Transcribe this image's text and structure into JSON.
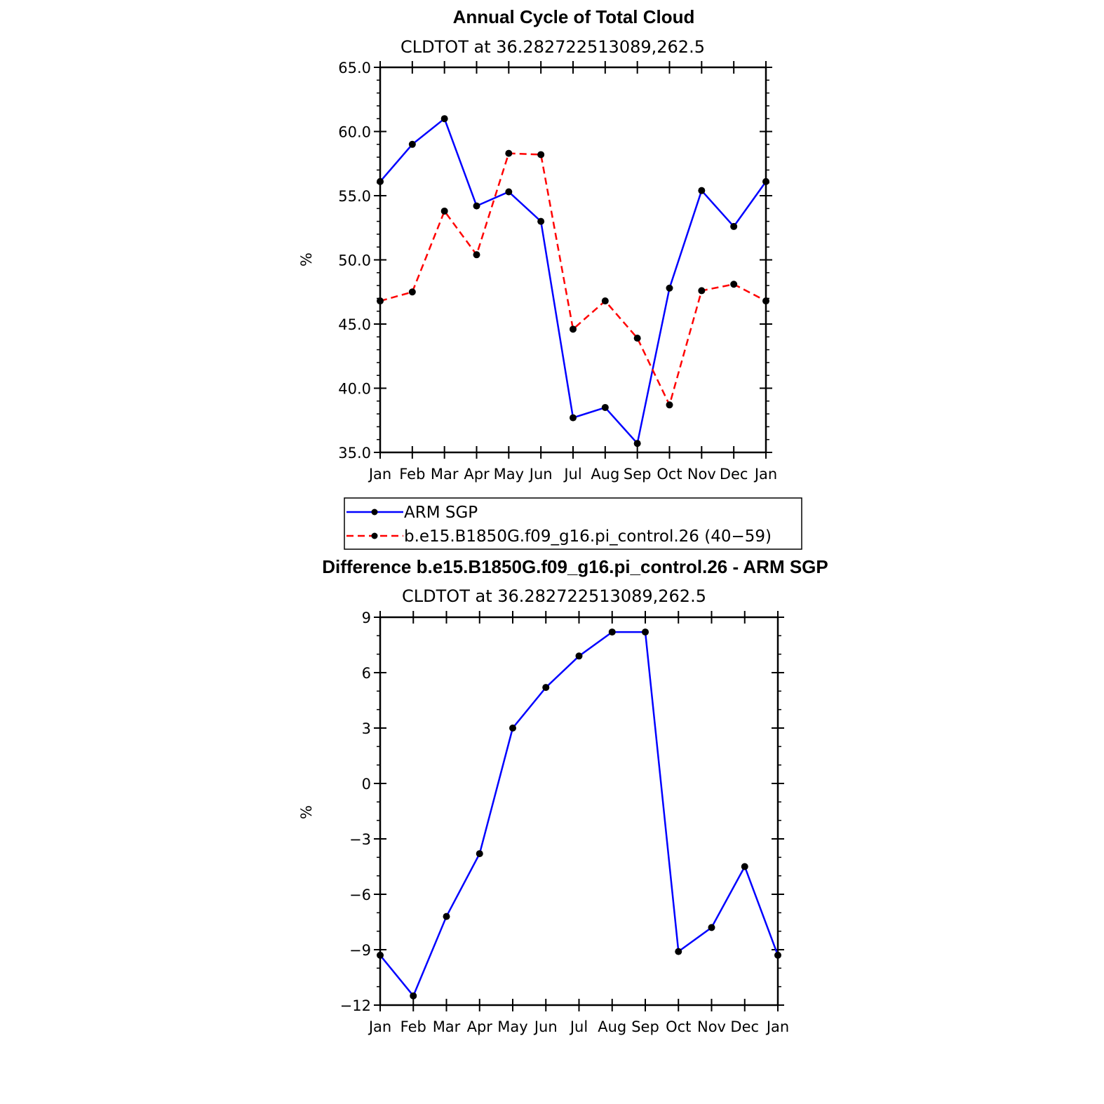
{
  "chart_data": [
    {
      "type": "line",
      "title": "Annual Cycle of Total Cloud",
      "subtitle": "CLDTOT at 36.282722513089,262.5",
      "ylabel": "%",
      "xlabel": "",
      "ylim": [
        35,
        65
      ],
      "yticks": [
        "35.0",
        "40.0",
        "45.0",
        "50.0",
        "55.0",
        "60.0",
        "65.0"
      ],
      "categories": [
        "Jan",
        "Feb",
        "Mar",
        "Apr",
        "May",
        "Jun",
        "Jul",
        "Aug",
        "Sep",
        "Oct",
        "Nov",
        "Dec",
        "Jan"
      ],
      "series": [
        {
          "name": "ARM SGP",
          "color": "#0000ff",
          "dash": "solid",
          "values": [
            56.1,
            59.0,
            61.0,
            54.2,
            55.3,
            53.0,
            37.7,
            38.5,
            35.7,
            47.8,
            55.4,
            52.6,
            56.1
          ]
        },
        {
          "name": "b.e15.B1850G.f09_g16.pi_control.26 (40−59)",
          "color": "#ff0000",
          "dash": "dashed",
          "values": [
            46.8,
            47.5,
            53.8,
            50.4,
            58.3,
            58.2,
            44.6,
            46.8,
            43.9,
            38.7,
            47.6,
            48.1,
            46.8
          ]
        }
      ],
      "legend": "below"
    },
    {
      "type": "line",
      "title": "Difference b.e15.B1850G.f09_g16.pi_control.26 - ARM SGP",
      "subtitle": "CLDTOT at 36.282722513089,262.5",
      "ylabel": "%",
      "xlabel": "",
      "ylim": [
        -12,
        9
      ],
      "yticks": [
        "−12",
        "−9",
        "−6",
        "−3",
        "0",
        "3",
        "6",
        "9"
      ],
      "categories": [
        "Jan",
        "Feb",
        "Mar",
        "Apr",
        "May",
        "Jun",
        "Jul",
        "Aug",
        "Sep",
        "Oct",
        "Nov",
        "Dec",
        "Jan"
      ],
      "series": [
        {
          "color": "#0000ff",
          "dash": "solid",
          "values": [
            -9.3,
            -11.5,
            -7.2,
            -3.8,
            3.0,
            5.2,
            6.9,
            8.2,
            8.2,
            -9.1,
            -7.8,
            -4.5,
            -9.3
          ]
        }
      ]
    }
  ]
}
